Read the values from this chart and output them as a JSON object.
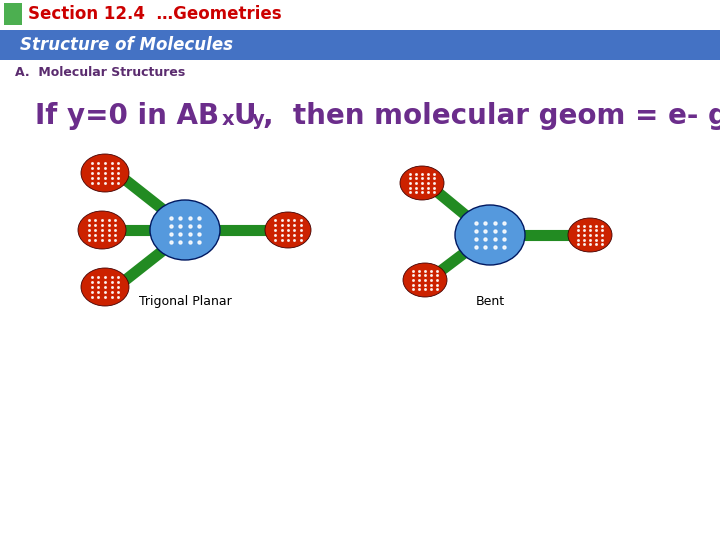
{
  "title_bar_color": "#4472C4",
  "title_text": "Section 12.4  …Geometries",
  "title_text_color": "#CC0000",
  "subtitle_text": "Structure of Molecules",
  "subtitle_text_color": "#FFFFFF",
  "label_a_text": "A.  Molecular Structures",
  "label_a_color": "#5B2C6F",
  "main_text_color": "#6B2D8B",
  "bg_color": "#FFFFFF",
  "green_square_color": "#4CAF50",
  "label1": "Trigonal Planar",
  "label2": "Bent",
  "label_font_size": 9,
  "blue_atom_color": "#5599DD",
  "red_atom_color": "#CC2200",
  "green_bond_color": "#228B22",
  "title_bg": "#FFFFFF",
  "subtitle_bar_height": 30,
  "title_bar_height": 28
}
